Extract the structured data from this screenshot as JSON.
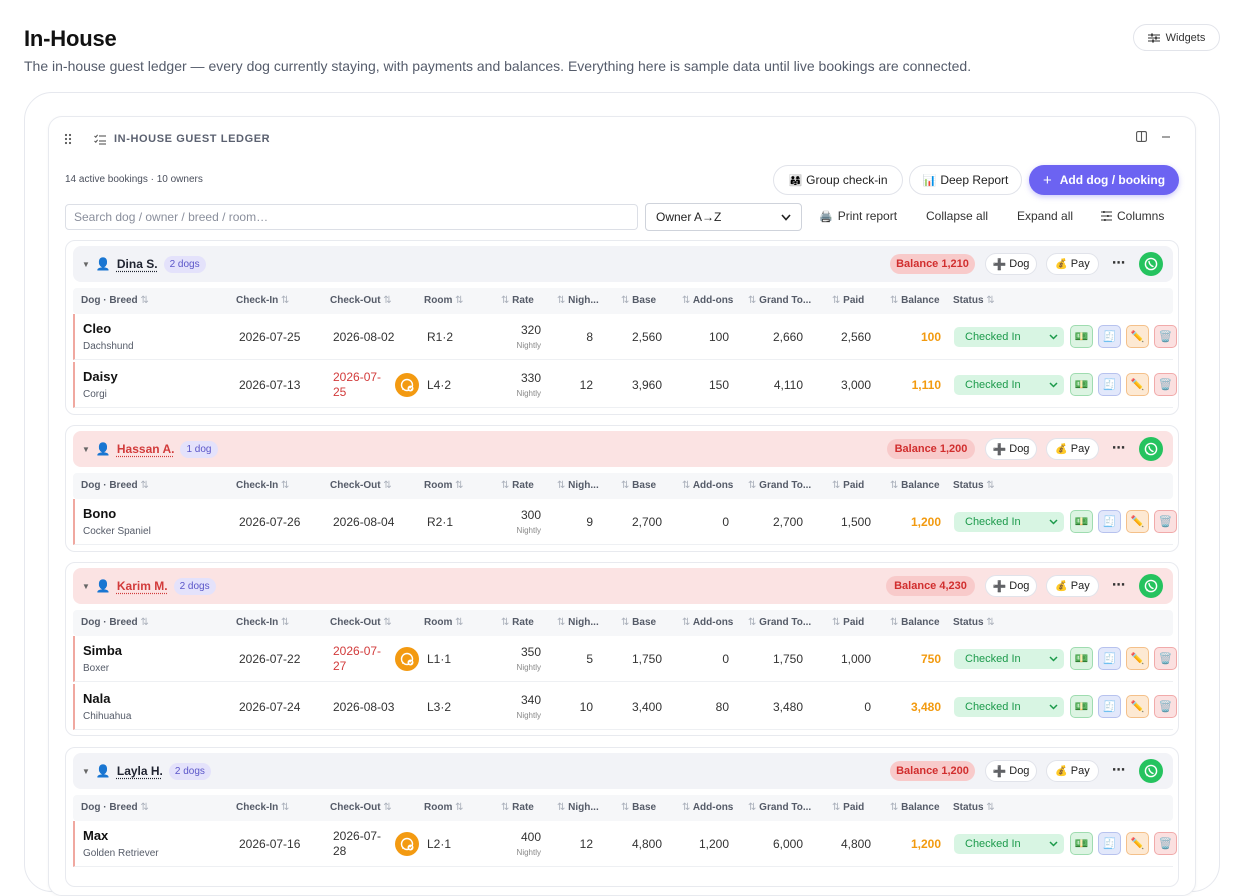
{
  "header": {
    "title": "In-House",
    "subtitle": "The in-house guest ledger — every dog currently staying, with payments and balances. Everything here is sample data until live bookings are connected.",
    "widgets_label": "Widgets"
  },
  "ledger": {
    "title": "IN-HOUSE GUEST LEDGER",
    "summary": "14 active bookings · 10 owners",
    "group_checkin_label": "Group check-in",
    "deep_report_label": "Deep Report",
    "add_booking_label": "Add dog / booking",
    "search_placeholder": "Search dog / owner / breed / room…",
    "sort_value": "Owner A→Z",
    "print_label": "Print report",
    "collapse_label": "Collapse all",
    "expand_label": "Expand all",
    "columns_label": "Columns"
  },
  "table_headers": {
    "dog": "Dog · Breed",
    "checkin": "Check-In",
    "checkout": "Check-Out",
    "room": "Room",
    "rate": "Rate",
    "nights": "Nigh...",
    "base": "Base",
    "addons": "Add-ons",
    "grand": "Grand To...",
    "paid": "Paid",
    "balance": "Balance",
    "status": "Status"
  },
  "labels": {
    "dog_btn": "Dog",
    "pay_btn": "Pay",
    "nightly": "Nightly",
    "status_value": "Checked In"
  },
  "groups": [
    {
      "owner": "Dina S.",
      "dogs_label": "2 dogs",
      "balance_label": "Balance 1,210",
      "alert": false,
      "rows": [
        {
          "name": "Cleo",
          "breed": "Dachshund",
          "checkin": "2026-07-25",
          "checkout": "2026-08-02",
          "checkout_overdue": false,
          "room": "R1·2",
          "rate": "320",
          "nights": "8",
          "base": "2,560",
          "addons": "100",
          "grand": "2,660",
          "paid": "2,560",
          "balance": "100"
        },
        {
          "name": "Daisy",
          "breed": "Corgi",
          "checkin": "2026-07-13",
          "checkout_a": "2026-07-",
          "checkout_b": "25",
          "checkout_overdue": true,
          "room": "L4·2",
          "rate": "330",
          "nights": "12",
          "base": "3,960",
          "addons": "150",
          "grand": "4,110",
          "paid": "3,000",
          "balance": "1,110"
        }
      ]
    },
    {
      "owner": "Hassan A.",
      "dogs_label": "1 dog",
      "balance_label": "Balance 1,200",
      "alert": true,
      "rows": [
        {
          "name": "Bono",
          "breed": "Cocker Spaniel",
          "checkin": "2026-07-26",
          "checkout": "2026-08-04",
          "checkout_overdue": false,
          "room": "R2·1",
          "rate": "300",
          "nights": "9",
          "base": "2,700",
          "addons": "0",
          "grand": "2,700",
          "paid": "1,500",
          "balance": "1,200"
        }
      ]
    },
    {
      "owner": "Karim M.",
      "dogs_label": "2 dogs",
      "balance_label": "Balance 4,230",
      "alert": true,
      "rows": [
        {
          "name": "Simba",
          "breed": "Boxer",
          "checkin": "2026-07-22",
          "checkout_a": "2026-07-",
          "checkout_b": "27",
          "checkout_overdue": true,
          "room": "L1·1",
          "rate": "350",
          "nights": "5",
          "base": "1,750",
          "addons": "0",
          "grand": "1,750",
          "paid": "1,000",
          "balance": "750"
        },
        {
          "name": "Nala",
          "breed": "Chihuahua",
          "checkin": "2026-07-24",
          "checkout": "2026-08-03",
          "checkout_overdue": false,
          "room": "L3·2",
          "rate": "340",
          "nights": "10",
          "base": "3,400",
          "addons": "80",
          "grand": "3,480",
          "paid": "0",
          "balance": "3,480"
        }
      ]
    },
    {
      "owner": "Layla H.",
      "dogs_label": "2 dogs",
      "balance_label": "Balance 1,200",
      "alert": false,
      "rows": [
        {
          "name": "Max",
          "breed": "Golden Retriever",
          "checkin": "2026-07-16",
          "checkout_a": "2026-07-",
          "checkout_b": "28",
          "checkout_overdue": false,
          "checkout_split": true,
          "room": "L2·1",
          "rate": "400",
          "nights": "12",
          "base": "4,800",
          "addons": "1,200",
          "grand": "6,000",
          "paid": "4,800",
          "balance": "1,200"
        }
      ]
    }
  ],
  "colors": {
    "accent": "#6c63f2",
    "balance_text": "#f29a0f",
    "overdue": "#d23b3b",
    "status_bg": "#d8f5e3",
    "whatsapp": "#25c35f"
  }
}
